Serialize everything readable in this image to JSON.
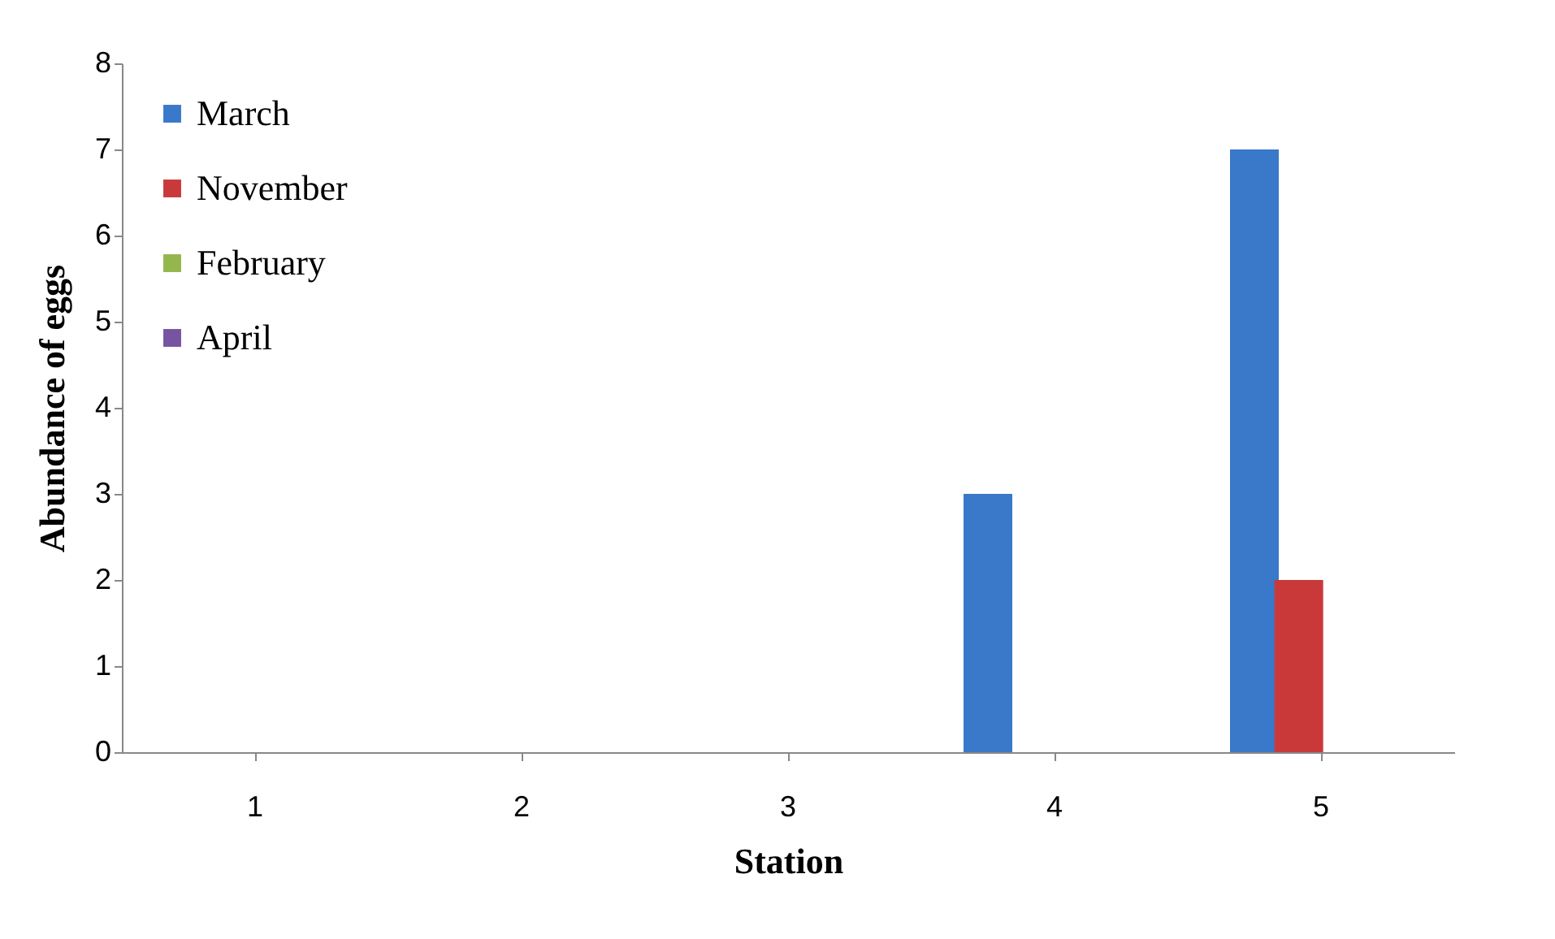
{
  "chart_data": {
    "type": "bar",
    "xlabel": "Station",
    "ylabel": "Abundance of eggs",
    "categories": [
      "1",
      "2",
      "3",
      "4",
      "5"
    ],
    "series": [
      {
        "name": "March",
        "color": "#3a78c9",
        "values": [
          0,
          0,
          0,
          3,
          7
        ]
      },
      {
        "name": "November",
        "color": "#c9393a",
        "values": [
          0,
          0,
          0,
          0,
          2
        ]
      },
      {
        "name": "February",
        "color": "#93b74c",
        "values": [
          0,
          0,
          0,
          0,
          0
        ]
      },
      {
        "name": "April",
        "color": "#7654a0",
        "values": [
          0,
          0,
          0,
          0,
          0
        ]
      }
    ],
    "ylim": [
      0,
      8
    ],
    "yticks": [
      0,
      1,
      2,
      3,
      4,
      5,
      6,
      7,
      8
    ],
    "grid": false,
    "legend": "top left"
  }
}
